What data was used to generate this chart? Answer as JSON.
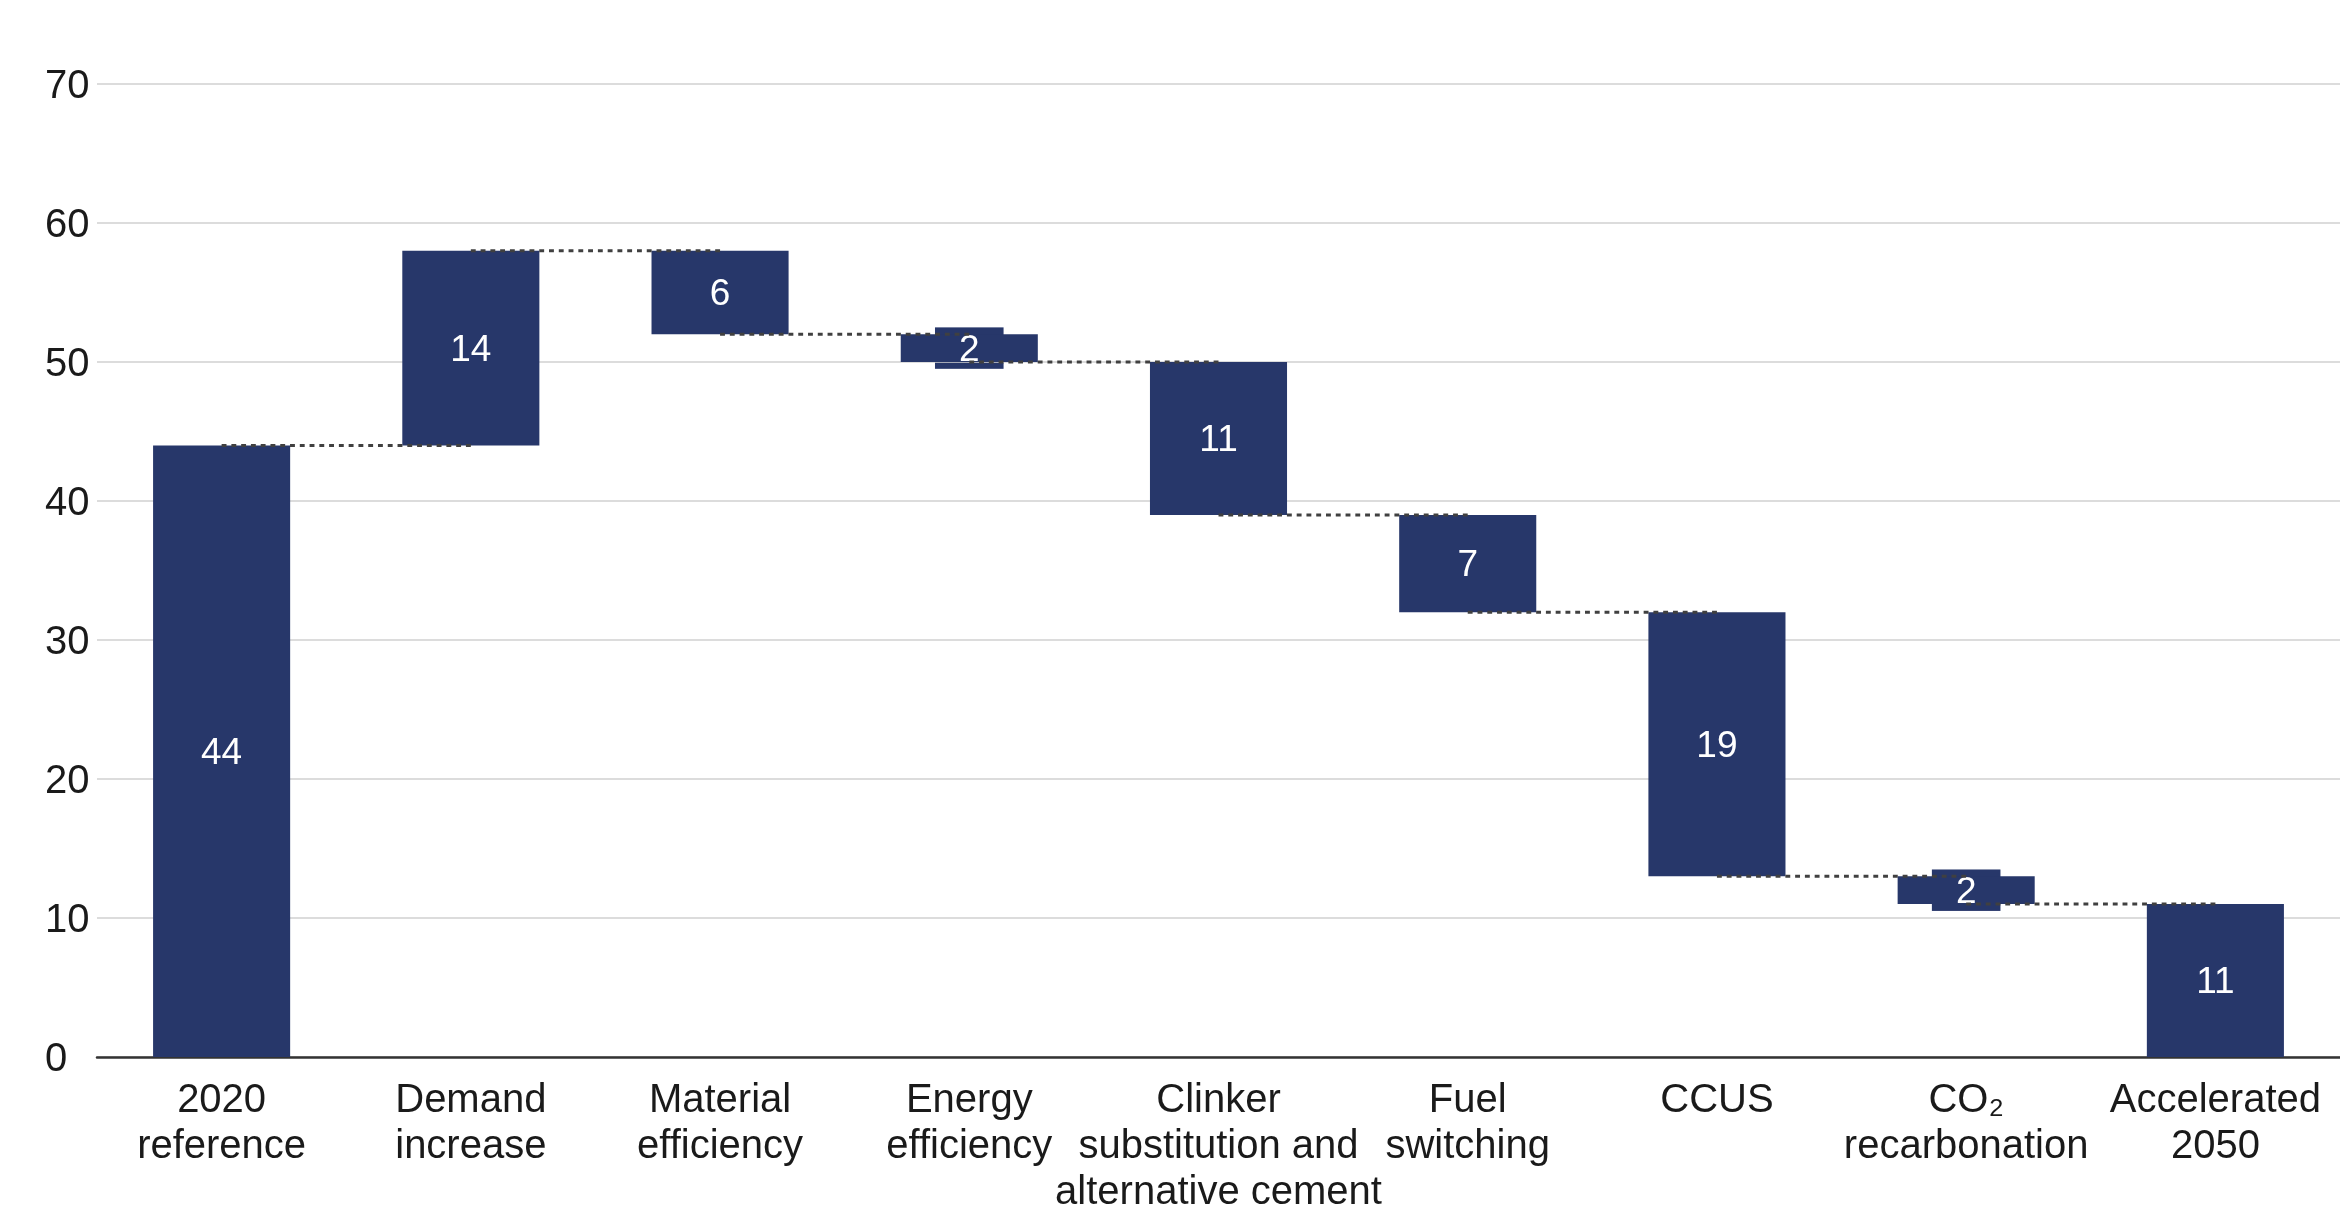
{
  "chart_data": {
    "type": "bar",
    "categories": [
      "2020\nreference",
      "Demand\nincrease",
      "Material\nefficiency",
      "Energy\nefficiency",
      "Clinker\nsubstitution and\nalternative cement",
      "Fuel\nswitching",
      "CCUS",
      "CO₂\nrecarbonation",
      "Accelerated\n2050"
    ],
    "series": [
      {
        "color": "#27376a",
        "values": [
          44,
          14,
          6,
          2,
          11,
          7,
          19,
          2,
          11
        ],
        "base": [
          0,
          44,
          52,
          50,
          39,
          32,
          13,
          11,
          0
        ],
        "value_labels": [
          "44",
          "14",
          "6",
          "2",
          "11",
          "7",
          "19",
          "2",
          "11"
        ]
      },
      {
        "type": "line",
        "color": "#404040",
        "line_style": "dotted",
        "x": [
          "2020\nreference",
          "Demand\nincrease",
          "Demand\nincrease",
          "Demand\nincrease",
          "Material\nefficiency",
          "Material\nefficiency",
          "Material\nefficiency",
          "Energy\nefficiency",
          "Energy\nefficiency",
          "Energy\nefficiency",
          "Clinker\nsubstitution and\nalternative cement",
          "Clinker\nsubstitution and\nalternative cement",
          "Clinker\nsubstitution and\nalternative cement",
          "Fuel\nswitching",
          "Fuel\nswitching",
          "Fuel\nswitching",
          "CCUS",
          "CCUS",
          "CCUS",
          "CO₂\nrecarbonation",
          "CO₂\nrecarbonation",
          "CO₂\nrecarbonation",
          "Accelerated\n2050"
        ],
        "values": [
          44,
          44,
          null,
          58,
          58,
          null,
          52,
          52,
          null,
          50,
          50,
          null,
          39,
          39,
          null,
          32,
          32,
          null,
          13,
          13,
          null,
          11,
          11
        ]
      }
    ],
    "ylim": [
      0,
      70
    ],
    "yticks": [
      0,
      10,
      20,
      30,
      40,
      50,
      60,
      70
    ],
    "grid": "y"
  }
}
